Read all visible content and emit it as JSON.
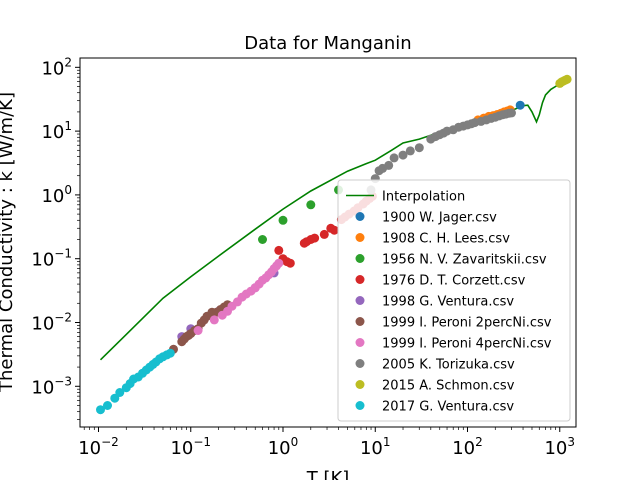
{
  "chart_data": {
    "type": "scatter",
    "title": "Data for Manganin",
    "xlabel": "T [K]",
    "ylabel": "Thermal Conductivity : k [W/m/K]",
    "xscale": "log",
    "yscale": "log",
    "xlim": [
      0.0063,
      1500
    ],
    "ylim": [
      0.00023,
      140
    ],
    "xticks": [
      {
        "value": 0.01,
        "base": "10",
        "exp": "−2"
      },
      {
        "value": 0.1,
        "base": "10",
        "exp": "−1"
      },
      {
        "value": 1,
        "base": "10",
        "exp": "0"
      },
      {
        "value": 10,
        "base": "10",
        "exp": "1"
      },
      {
        "value": 100,
        "base": "10",
        "exp": "2"
      },
      {
        "value": 1000,
        "base": "10",
        "exp": "3"
      }
    ],
    "yticks": [
      {
        "value": 0.001,
        "base": "10",
        "exp": "−3"
      },
      {
        "value": 0.01,
        "base": "10",
        "exp": "−2"
      },
      {
        "value": 0.1,
        "base": "10",
        "exp": "−1"
      },
      {
        "value": 1,
        "base": "10",
        "exp": "0"
      },
      {
        "value": 10,
        "base": "10",
        "exp": "1"
      },
      {
        "value": 100,
        "base": "10",
        "exp": "2"
      }
    ],
    "grid": false,
    "legend_position": "lower right",
    "interpolation": {
      "name": "Interpolation",
      "color": "#008000",
      "x": [
        0.0105,
        0.02,
        0.05,
        0.1,
        0.2,
        0.5,
        1,
        2,
        5,
        8,
        10,
        15,
        20,
        30,
        40,
        50,
        70,
        100,
        150,
        200,
        300,
        400,
        450,
        500,
        560,
        600,
        650,
        700,
        800,
        900,
        1000,
        1200
      ],
      "y": [
        0.0026,
        0.0065,
        0.024,
        0.052,
        0.11,
        0.29,
        0.6,
        1.15,
        2.35,
        3.1,
        3.5,
        5.0,
        6.5,
        7.5,
        8.6,
        9.6,
        11.0,
        12.5,
        14.8,
        17.0,
        21.0,
        25.0,
        25.5,
        20.0,
        14.0,
        18.0,
        28.0,
        37.0,
        45.0,
        50.0,
        55.0,
        66.0
      ]
    },
    "series": [
      {
        "name": "1900 W. Jager.csv",
        "color": "#1f77b4",
        "x": [
          373
        ],
        "y": [
          25.5
        ]
      },
      {
        "name": "1908 C. H. Lees.csv",
        "color": "#ff7f0e",
        "x": [
          130,
          150,
          170,
          190,
          210,
          230,
          250,
          270,
          290
        ],
        "y": [
          15.0,
          16.0,
          17.0,
          17.5,
          18.2,
          19.0,
          20.0,
          20.7,
          21.5
        ]
      },
      {
        "name": "1956 N. V. Zavaritskii.csv",
        "color": "#2ca02c",
        "x": [
          0.6,
          1.0,
          2.0,
          4.0
        ],
        "y": [
          0.2,
          0.4,
          0.7,
          1.2
        ]
      },
      {
        "name": "1976 D. T. Corzett.csv",
        "color": "#d62728",
        "x": [
          0.9,
          1.0,
          1.1,
          1.2,
          1.7,
          1.8,
          2.0,
          2.2,
          2.8,
          3.3,
          3.6,
          4.3,
          4.7,
          5.2,
          5.9,
          6.5,
          7.4,
          8.0,
          8.7,
          9.3
        ],
        "y": [
          0.135,
          0.1,
          0.09,
          0.085,
          0.175,
          0.185,
          0.2,
          0.21,
          0.24,
          0.3,
          0.28,
          0.41,
          0.45,
          0.5,
          0.56,
          0.63,
          0.72,
          0.8,
          0.88,
          0.95
        ]
      },
      {
        "name": "1998 G. Ventura.csv",
        "color": "#9467bd",
        "x": [
          0.08,
          0.1,
          0.2,
          0.5,
          0.8
        ],
        "y": [
          0.006,
          0.008,
          0.015,
          0.035,
          0.06
        ]
      },
      {
        "name": "1999 I. Peroni 2percNi.csv",
        "color": "#8c564b",
        "x": [
          0.065,
          0.08,
          0.085,
          0.09,
          0.095,
          0.1,
          0.11,
          0.12,
          0.13,
          0.14,
          0.15,
          0.17,
          0.19,
          0.21,
          0.23,
          0.25
        ],
        "y": [
          0.0038,
          0.005,
          0.0055,
          0.006,
          0.0063,
          0.0067,
          0.0075,
          0.008,
          0.0098,
          0.011,
          0.0125,
          0.0145,
          0.0145,
          0.016,
          0.0175,
          0.019
        ]
      },
      {
        "name": "1999 I. Peroni 4percNi.csv",
        "color": "#e377c2",
        "x": [
          0.12,
          0.18,
          0.22,
          0.25,
          0.28,
          0.32,
          0.36,
          0.4,
          0.45,
          0.5,
          0.55,
          0.6,
          0.65,
          0.7,
          0.75,
          0.8,
          0.85,
          0.9
        ],
        "y": [
          0.0075,
          0.011,
          0.013,
          0.015,
          0.018,
          0.021,
          0.025,
          0.028,
          0.031,
          0.035,
          0.04,
          0.046,
          0.05,
          0.056,
          0.062,
          0.07,
          0.077,
          0.085
        ]
      },
      {
        "name": "2005 K. Torizuka.csv",
        "color": "#7f7f7f",
        "x": [
          9,
          10,
          11,
          12,
          14,
          16,
          20,
          24,
          30,
          40,
          45,
          50,
          55,
          60,
          70,
          80,
          90,
          100,
          110,
          120,
          140,
          160,
          180,
          200,
          220,
          240,
          260,
          280,
          300
        ],
        "y": [
          1.2,
          1.8,
          2.4,
          2.6,
          2.9,
          3.8,
          4.2,
          4.9,
          5.5,
          7.5,
          8.2,
          8.8,
          9.3,
          10.0,
          10.5,
          11.5,
          12.0,
          12.5,
          13.0,
          13.6,
          14.2,
          15.0,
          15.8,
          16.5,
          17.3,
          18.0,
          18.5,
          19.0,
          19.3
        ]
      },
      {
        "name": "2015 A. Schmon.csv",
        "color": "#bcbd22",
        "x": [
          1000,
          1050,
          1100,
          1150,
          1200
        ],
        "y": [
          56,
          59,
          61,
          63,
          65
        ]
      },
      {
        "name": "2017 G. Ventura.csv",
        "color": "#17becf",
        "x": [
          0.0105,
          0.0125,
          0.015,
          0.017,
          0.02,
          0.022,
          0.024,
          0.027,
          0.03,
          0.033,
          0.036,
          0.039,
          0.042,
          0.046,
          0.05,
          0.055,
          0.06
        ],
        "y": [
          0.00043,
          0.0005,
          0.00065,
          0.0008,
          0.00095,
          0.0011,
          0.0013,
          0.0014,
          0.0016,
          0.0018,
          0.002,
          0.0022,
          0.0024,
          0.0027,
          0.0029,
          0.0031,
          0.0033
        ]
      }
    ]
  }
}
